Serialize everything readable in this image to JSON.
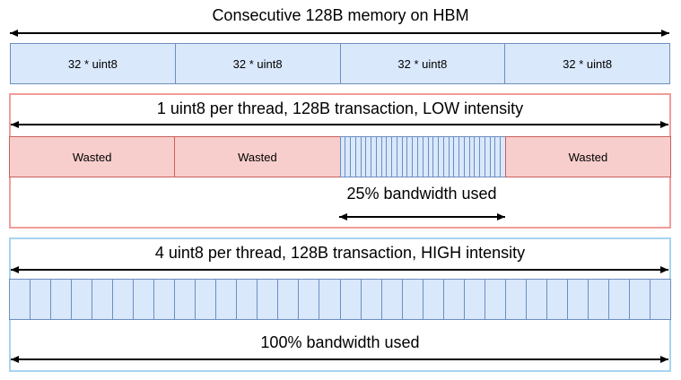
{
  "colors": {
    "blue_fill": "#dae8fc",
    "blue_stroke": "#6c8ebf",
    "pink_fill": "#f8cecc",
    "red_stroke": "#c9605b",
    "container_red_stroke": "#f19c99",
    "container_blue_stroke": "#a8d3f0",
    "arrow_color": "#000000"
  },
  "icons": {
    "extent_arrow": "double-headed-arrow"
  },
  "header": {
    "title": "Consecutive 128B memory on HBM"
  },
  "memory_row": {
    "blocks": [
      "32 * uint8",
      "32 * uint8",
      "32 * uint8",
      "32 * uint8"
    ]
  },
  "low_intensity": {
    "title": "1 uint8 per thread, 128B transaction, LOW intensity",
    "wasted_labels": [
      "Wasted",
      "Wasted",
      "Wasted"
    ],
    "used_segment": {
      "stripe_count": 32,
      "position_index": 2
    },
    "bandwidth_label": "25% bandwidth used"
  },
  "high_intensity": {
    "title": "4 uint8 per thread, 128B transaction, HIGH intensity",
    "cell_count": 32,
    "bandwidth_label": "100% bandwidth used"
  }
}
